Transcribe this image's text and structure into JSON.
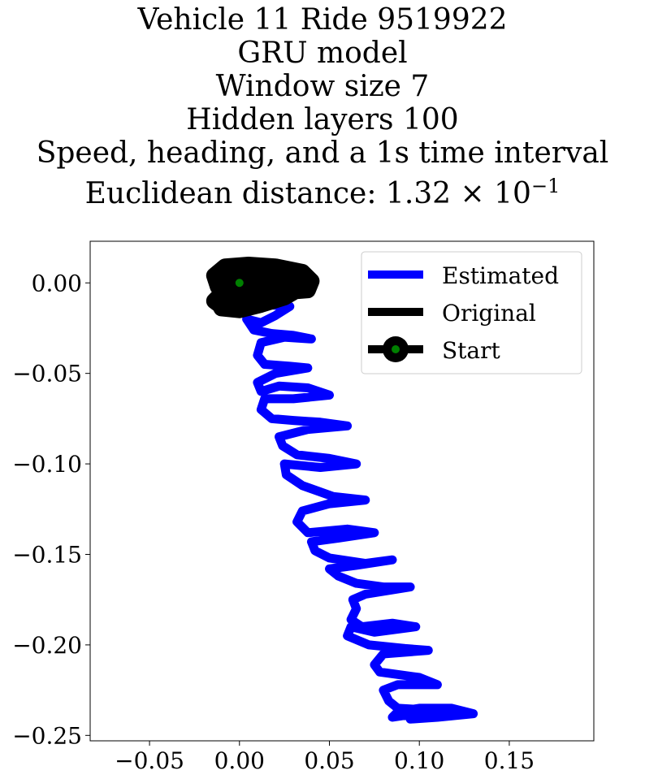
{
  "chart_data": {
    "type": "line",
    "title_lines": [
      "Vehicle 11 Ride 9519922",
      "GRU model",
      "Window size 7",
      "Hidden layers 100",
      "Speed, heading, and a 1s time interval",
      "Euclidean distance: 1.32 × 10",
      "−1"
    ],
    "xlim": [
      -0.083,
      0.197
    ],
    "ylim": [
      -0.253,
      0.023
    ],
    "x_ticks": [
      -0.05,
      0.0,
      0.05,
      0.1,
      0.15
    ],
    "x_tick_labels": [
      "−0.05",
      "0.00",
      "0.05",
      "0.10",
      "0.15"
    ],
    "y_ticks": [
      0.0,
      -0.05,
      -0.1,
      -0.15,
      -0.2,
      -0.25
    ],
    "y_tick_labels": [
      "0.00",
      "−0.05",
      "−0.10",
      "−0.15",
      "−0.20",
      "−0.25"
    ],
    "grid": false,
    "legend_position": "top-right",
    "legend": [
      "Estimated",
      "Original",
      "Start"
    ],
    "colors": {
      "estimated": "#0000ff",
      "original": "#000000",
      "start_marker": "#008000"
    },
    "series": [
      {
        "name": "Estimated",
        "x": [
          0.0,
          0.008,
          0.015,
          0.028,
          0.02,
          0.012,
          0.004,
          0.008,
          0.018,
          0.03,
          0.04,
          0.025,
          0.012,
          0.01,
          0.014,
          0.028,
          0.038,
          0.02,
          0.01,
          0.012,
          0.022,
          0.038,
          0.05,
          0.03,
          0.014,
          0.012,
          0.018,
          0.03,
          0.045,
          0.06,
          0.038,
          0.022,
          0.024,
          0.032,
          0.05,
          0.065,
          0.045,
          0.025,
          0.026,
          0.035,
          0.052,
          0.07,
          0.05,
          0.035,
          0.032,
          0.038,
          0.06,
          0.075,
          0.055,
          0.04,
          0.042,
          0.05,
          0.07,
          0.085,
          0.065,
          0.05,
          0.055,
          0.065,
          0.08,
          0.095,
          0.07,
          0.063,
          0.065,
          0.062,
          0.068,
          0.085,
          0.098,
          0.075,
          0.062,
          0.06,
          0.072,
          0.092,
          0.105,
          0.08,
          0.075,
          0.078,
          0.1,
          0.11,
          0.088,
          0.08,
          0.083,
          0.088,
          0.105,
          0.12,
          0.098,
          0.085,
          0.088,
          0.1,
          0.118,
          0.13,
          0.11,
          0.095
        ],
        "y": [
          0.0,
          -0.005,
          -0.012,
          -0.013,
          -0.018,
          -0.022,
          -0.02,
          -0.026,
          -0.028,
          -0.029,
          -0.031,
          -0.03,
          -0.033,
          -0.04,
          -0.045,
          -0.046,
          -0.047,
          -0.05,
          -0.055,
          -0.06,
          -0.057,
          -0.058,
          -0.062,
          -0.064,
          -0.064,
          -0.07,
          -0.075,
          -0.076,
          -0.077,
          -0.079,
          -0.081,
          -0.085,
          -0.09,
          -0.095,
          -0.097,
          -0.1,
          -0.102,
          -0.1,
          -0.106,
          -0.112,
          -0.118,
          -0.12,
          -0.122,
          -0.126,
          -0.132,
          -0.138,
          -0.136,
          -0.138,
          -0.141,
          -0.143,
          -0.148,
          -0.152,
          -0.155,
          -0.153,
          -0.156,
          -0.158,
          -0.162,
          -0.166,
          -0.168,
          -0.168,
          -0.172,
          -0.175,
          -0.18,
          -0.186,
          -0.19,
          -0.188,
          -0.19,
          -0.193,
          -0.19,
          -0.195,
          -0.2,
          -0.202,
          -0.203,
          -0.205,
          -0.211,
          -0.215,
          -0.218,
          -0.222,
          -0.222,
          -0.225,
          -0.231,
          -0.235,
          -0.236,
          -0.238,
          -0.238,
          -0.24,
          -0.237,
          -0.235,
          -0.235,
          -0.238,
          -0.24,
          -0.241
        ]
      },
      {
        "name": "Original",
        "x": [
          0.0,
          -0.012,
          -0.014,
          -0.008,
          0.005,
          0.02,
          0.035,
          0.04,
          0.038,
          0.025,
          0.01,
          -0.005,
          -0.012,
          -0.01,
          0.0,
          0.012,
          0.025,
          0.032,
          0.03,
          0.018,
          0.005,
          -0.008,
          -0.014,
          -0.01,
          0.003,
          0.018,
          0.03,
          0.036,
          0.028,
          0.012,
          -0.004,
          -0.013,
          -0.011,
          0.0
        ],
        "y": [
          0.0,
          -0.002,
          0.004,
          0.009,
          0.01,
          0.009,
          0.006,
          0.001,
          -0.004,
          -0.005,
          -0.004,
          -0.006,
          -0.01,
          -0.014,
          -0.015,
          -0.012,
          -0.008,
          -0.004,
          0.0,
          0.003,
          0.002,
          -0.004,
          -0.01,
          -0.013,
          -0.011,
          -0.006,
          -0.002,
          0.002,
          0.006,
          0.008,
          0.006,
          0.002,
          -0.004,
          -0.006
        ]
      }
    ],
    "start_point": {
      "x": 0.0,
      "y": 0.0
    }
  }
}
